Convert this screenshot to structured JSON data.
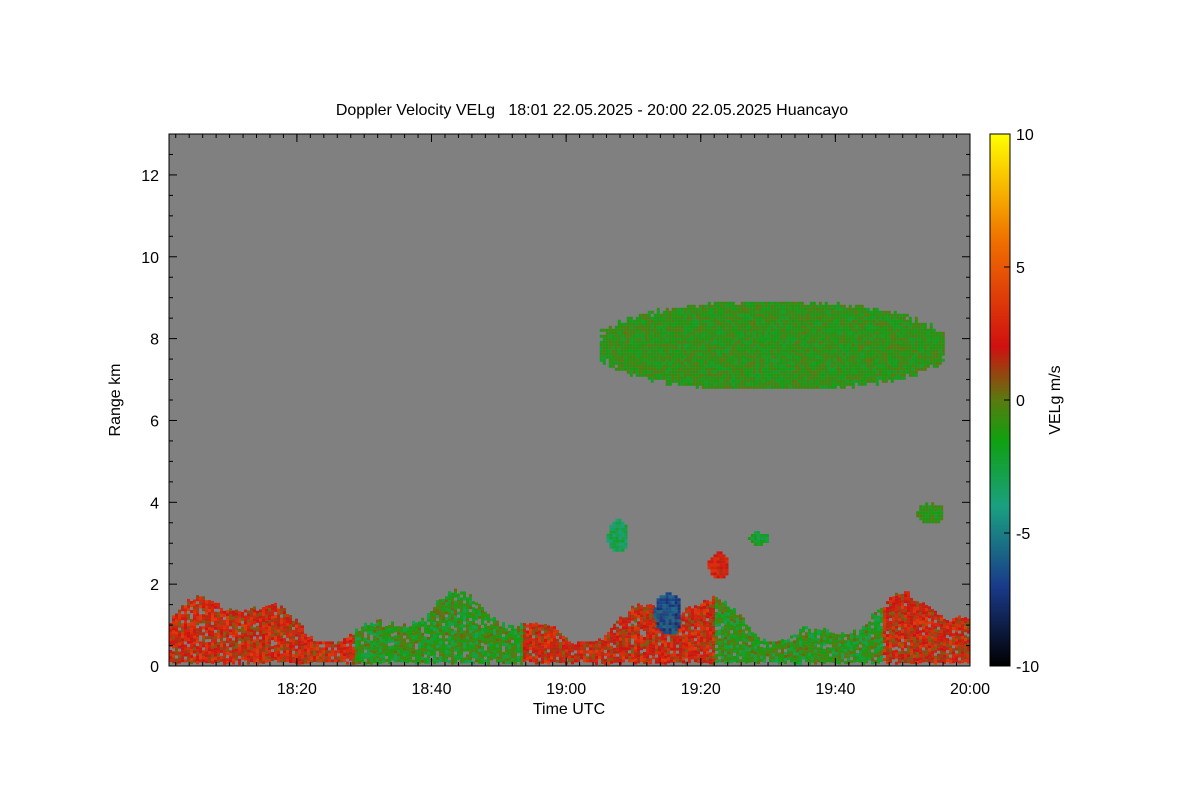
{
  "chart_data": {
    "type": "heatmap",
    "title": "Doppler Velocity VELg   18:01 22.05.2025 - 20:00 22.05.2025 Huancayo",
    "xlabel": "Time UTC",
    "ylabel": "Range km",
    "xlim_minutes_utc": [
      1081,
      1200
    ],
    "ylim": [
      0,
      13
    ],
    "x_ticks": [
      {
        "value": 1100,
        "label": "18:20"
      },
      {
        "value": 1120,
        "label": "18:40"
      },
      {
        "value": 1140,
        "label": "19:00"
      },
      {
        "value": 1160,
        "label": "19:20"
      },
      {
        "value": 1180,
        "label": "19:40"
      },
      {
        "value": 1200,
        "label": "20:00"
      }
    ],
    "y_ticks": [
      0,
      2,
      4,
      6,
      8,
      10,
      12
    ],
    "colorbar": {
      "label": "VELg m/s",
      "range": [
        -10,
        10
      ],
      "ticks": [
        10,
        5,
        0,
        -5,
        -10
      ],
      "stops": [
        {
          "value": -10,
          "color": "#000000"
        },
        {
          "value": -7,
          "color": "#1a3a8a"
        },
        {
          "value": -4,
          "color": "#1aa080"
        },
        {
          "value": -1.5,
          "color": "#10a010"
        },
        {
          "value": 0,
          "color": "#5a7a10"
        },
        {
          "value": 2,
          "color": "#d01010"
        },
        {
          "value": 6,
          "color": "#f07000"
        },
        {
          "value": 10,
          "color": "#ffff00"
        }
      ]
    },
    "background_color": "#808080",
    "echo_regions": [
      {
        "name": "boundary layer",
        "x_range": [
          1081,
          1200
        ],
        "y_range": [
          0.1,
          1.9
        ],
        "velocity_ms": 1.0
      },
      {
        "name": "cloud layer 8 km",
        "x_range": [
          1145,
          1196
        ],
        "y_range": [
          6.8,
          8.9
        ],
        "velocity_ms": -1.0
      },
      {
        "name": "cloud 3 km",
        "x_range": [
          1146,
          1149
        ],
        "y_range": [
          2.8,
          3.6
        ],
        "velocity_ms": -3.0
      },
      {
        "name": "cloud 2.5 km",
        "x_range": [
          1161,
          1164
        ],
        "y_range": [
          2.2,
          2.8
        ],
        "velocity_ms": 2.5
      },
      {
        "name": "cloud 3.2 km",
        "x_range": [
          1167,
          1170
        ],
        "y_range": [
          3.0,
          3.3
        ],
        "velocity_ms": -2.0
      },
      {
        "name": "cloud 3.8 km",
        "x_range": [
          1192,
          1196
        ],
        "y_range": [
          3.5,
          4.0
        ],
        "velocity_ms": -1.0
      },
      {
        "name": "downdraft 1.2 km",
        "x_range": [
          1153,
          1157
        ],
        "y_range": [
          0.8,
          1.8
        ],
        "velocity_ms": -6.5
      }
    ]
  }
}
